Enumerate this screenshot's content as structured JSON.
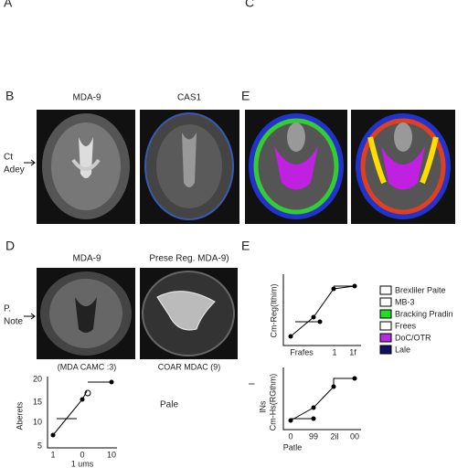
{
  "panel_letters": [
    "A",
    "C",
    "B",
    "E",
    "D",
    "E"
  ],
  "panel_b": {
    "headers": [
      "MDA-9",
      "CAS1"
    ],
    "side_label": [
      "Ct",
      "Adey"
    ]
  },
  "panel_d": {
    "headers": [
      "MDA-9",
      "Prese Reg. MDA-9)"
    ],
    "side_label": [
      "P.",
      "Note"
    ],
    "captions": [
      "(MDA CAMC :3)",
      "COAR MDAC (9)"
    ]
  },
  "plot_d": {
    "yticks": [
      "20",
      "15",
      "10",
      "5"
    ],
    "xticks": [
      "1",
      "0",
      "10"
    ],
    "ylabel": "Aberets",
    "xlabel": "1 ums",
    "note": "Pale"
  },
  "plot_e1": {
    "ylabel": "Cm-Reg(Ithim)",
    "xticks": [
      "Frafes",
      "1",
      "1f"
    ]
  },
  "plot_e2": {
    "ylabel": [
      "I",
      "lNs",
      "Cm-Hs(RGthm)"
    ],
    "xticks": [
      "0",
      "99",
      "2il",
      "00"
    ],
    "xlabel": "Patle"
  },
  "legend": [
    "Brexliler Paite",
    "MB-3",
    "Bracking Pradin",
    "Frees",
    "DoC/OTR",
    "Lale"
  ]
}
